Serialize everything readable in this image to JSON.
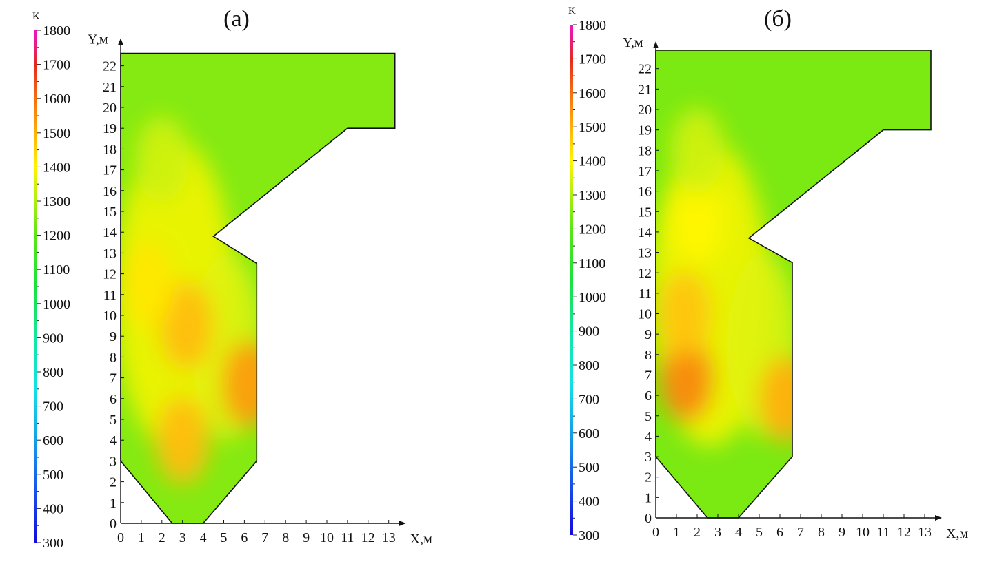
{
  "chart_data": [
    {
      "type": "heatmap",
      "title": "(а)",
      "xlabel": "X,м",
      "ylabel": "Y,м",
      "colorbar_unit": "K",
      "colorbar_ticks": [
        300,
        400,
        500,
        600,
        700,
        800,
        900,
        1000,
        1100,
        1200,
        1300,
        1400,
        1500,
        1600,
        1700,
        1800
      ],
      "colorbar_range": [
        300,
        1800
      ],
      "x_ticks": [
        0,
        1,
        2,
        3,
        4,
        5,
        6,
        7,
        8,
        9,
        10,
        11,
        12,
        13
      ],
      "y_ticks": [
        0,
        1,
        2,
        3,
        4,
        5,
        6,
        7,
        8,
        9,
        10,
        11,
        12,
        13,
        14,
        15,
        16,
        17,
        18,
        19,
        20,
        21,
        22
      ],
      "xlim": [
        0,
        13.3
      ],
      "ylim": [
        0,
        22.8
      ],
      "domain_outline": [
        [
          0,
          3
        ],
        [
          2.5,
          0
        ],
        [
          4,
          0
        ],
        [
          6.6,
          3
        ],
        [
          6.6,
          12.5
        ],
        [
          4.5,
          13.8
        ],
        [
          11,
          19
        ],
        [
          13.3,
          19
        ],
        [
          13.3,
          22.6
        ],
        [
          0,
          22.6
        ]
      ],
      "background_temperature": 1250,
      "hot_spots": [
        {
          "x": 3.2,
          "y": 9.5,
          "value": 1480
        },
        {
          "x": 6.2,
          "y": 6.7,
          "value": 1530
        },
        {
          "x": 3.0,
          "y": 4.0,
          "value": 1480
        },
        {
          "x": 1.3,
          "y": 11.5,
          "value": 1420
        },
        {
          "x": 2.0,
          "y": 17.5,
          "value": 1340
        }
      ]
    },
    {
      "type": "heatmap",
      "title": "(б)",
      "xlabel": "X,м",
      "ylabel": "Y,м",
      "colorbar_unit": "K",
      "colorbar_ticks": [
        300,
        400,
        500,
        600,
        700,
        800,
        900,
        1000,
        1100,
        1200,
        1300,
        1400,
        1500,
        1600,
        1700,
        1800
      ],
      "colorbar_range": [
        300,
        1800
      ],
      "x_ticks": [
        0,
        1,
        2,
        3,
        4,
        5,
        6,
        7,
        8,
        9,
        10,
        11,
        12,
        13
      ],
      "y_ticks": [
        0,
        1,
        2,
        3,
        4,
        5,
        6,
        7,
        8,
        9,
        10,
        11,
        12,
        13,
        14,
        15,
        16,
        17,
        18,
        19,
        20,
        21,
        22
      ],
      "xlim": [
        0,
        13.3
      ],
      "ylim": [
        0,
        22.8
      ],
      "domain_outline": [
        [
          0,
          3
        ],
        [
          2.5,
          0
        ],
        [
          4,
          0
        ],
        [
          6.6,
          3
        ],
        [
          6.6,
          12.5
        ],
        [
          4.5,
          13.7
        ],
        [
          11,
          19
        ],
        [
          13.3,
          19
        ],
        [
          13.3,
          22.9
        ],
        [
          0,
          22.9
        ]
      ],
      "background_temperature": 1240,
      "hot_spots": [
        {
          "x": 1.5,
          "y": 6.8,
          "value": 1560
        },
        {
          "x": 1.4,
          "y": 10.0,
          "value": 1470
        },
        {
          "x": 6.3,
          "y": 5.8,
          "value": 1500
        },
        {
          "x": 2.0,
          "y": 14.5,
          "value": 1400
        },
        {
          "x": 2.0,
          "y": 18.0,
          "value": 1340
        }
      ]
    }
  ]
}
